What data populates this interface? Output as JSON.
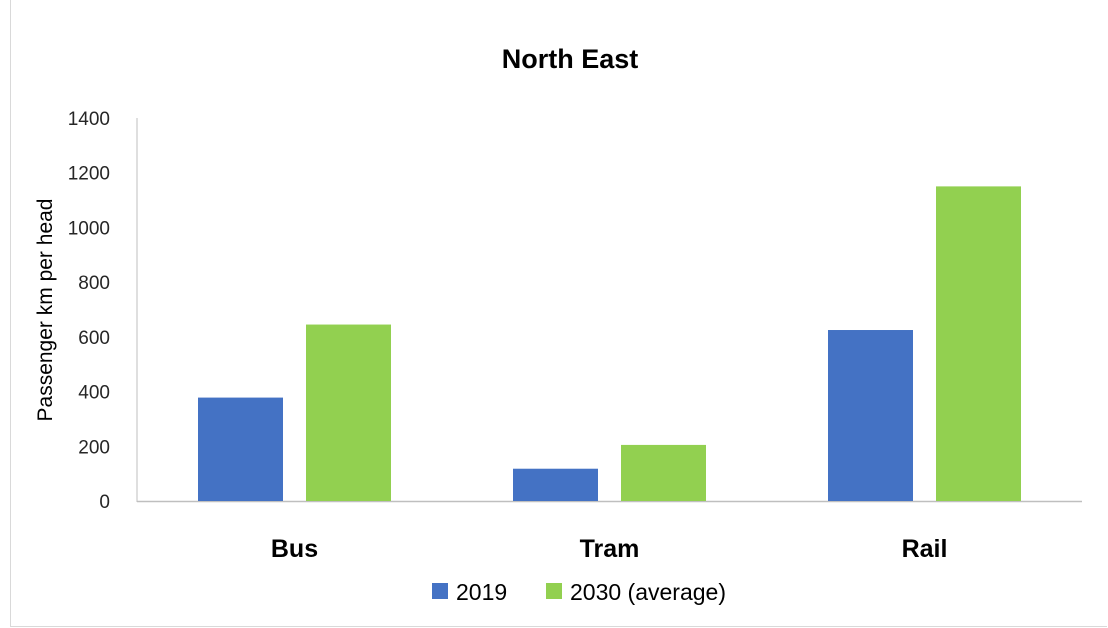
{
  "chart_data": {
    "type": "bar",
    "title": "North East",
    "xlabel": "",
    "ylabel": "Passenger km per head",
    "categories": [
      "Bus",
      "Tram",
      "Rail"
    ],
    "series": [
      {
        "name": "2019",
        "values": [
          378,
          118,
          625
        ],
        "color": "#4472c4"
      },
      {
        "name": "2030 (average)",
        "values": [
          645,
          205,
          1150
        ],
        "color": "#92d050"
      }
    ],
    "ylim": [
      0,
      1400
    ],
    "yticks": [
      "0",
      "200",
      "400",
      "600",
      "800",
      "1000",
      "1200",
      "1400"
    ],
    "grid": false,
    "legend_position": "bottom"
  }
}
